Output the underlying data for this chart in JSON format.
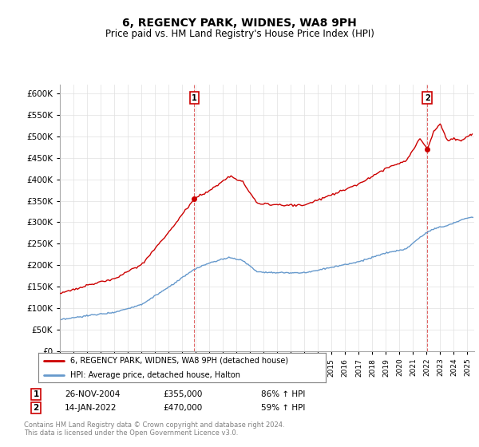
{
  "title": "6, REGENCY PARK, WIDNES, WA8 9PH",
  "subtitle": "Price paid vs. HM Land Registry's House Price Index (HPI)",
  "legend_entry1": "6, REGENCY PARK, WIDNES, WA8 9PH (detached house)",
  "legend_entry2": "HPI: Average price, detached house, Halton",
  "annotation1_date": "26-NOV-2004",
  "annotation1_price": 355000,
  "annotation1_hpi": "86% ↑ HPI",
  "annotation2_date": "14-JAN-2022",
  "annotation2_price": 470000,
  "annotation2_hpi": "59% ↑ HPI",
  "footer": "Contains HM Land Registry data © Crown copyright and database right 2024.\nThis data is licensed under the Open Government Licence v3.0.",
  "hpi_color": "#6699cc",
  "price_color": "#cc0000",
  "ylim": [
    0,
    620000
  ],
  "yticks": [
    0,
    50000,
    100000,
    150000,
    200000,
    250000,
    300000,
    350000,
    400000,
    450000,
    500000,
    550000,
    600000
  ],
  "xlim_start": 1995.0,
  "xlim_end": 2025.5,
  "sale1_x": 2004.9,
  "sale1_y": 355000,
  "sale2_x": 2022.05,
  "sale2_y": 470000,
  "hpi_anchors_x": [
    1995.0,
    1997.0,
    1999.0,
    2001.0,
    2003.0,
    2004.9,
    2006.0,
    2007.5,
    2008.5,
    2009.5,
    2011.0,
    2013.0,
    2015.0,
    2017.0,
    2019.0,
    2020.5,
    2021.5,
    2022.5,
    2023.5,
    2024.5,
    2025.3
  ],
  "hpi_anchors_y": [
    72000,
    82000,
    90000,
    108000,
    148000,
    190000,
    205000,
    218000,
    210000,
    185000,
    182000,
    182000,
    195000,
    208000,
    228000,
    238000,
    265000,
    285000,
    292000,
    305000,
    312000
  ],
  "price_anchors_x1": [
    1995.0,
    1997.0,
    1999.0,
    2001.0,
    2003.0,
    2004.9,
    2006.5,
    2007.5,
    2008.5,
    2009.5,
    2011.0,
    2013.0,
    2015.0,
    2017.0,
    2019.0,
    2020.5,
    2021.5,
    2022.05
  ],
  "price_anchors_y1": [
    134000,
    153000,
    168000,
    201000,
    276000,
    355000,
    383000,
    408000,
    392000,
    345000,
    340000,
    340000,
    364000,
    389000,
    426000,
    444000,
    495000,
    470000
  ],
  "price_anchors_x2": [
    2022.05,
    2022.5,
    2023.0,
    2023.5,
    2024.0,
    2024.5,
    2025.0,
    2025.3
  ],
  "price_anchors_y2": [
    470000,
    510000,
    530000,
    490000,
    495000,
    490000,
    500000,
    505000
  ]
}
